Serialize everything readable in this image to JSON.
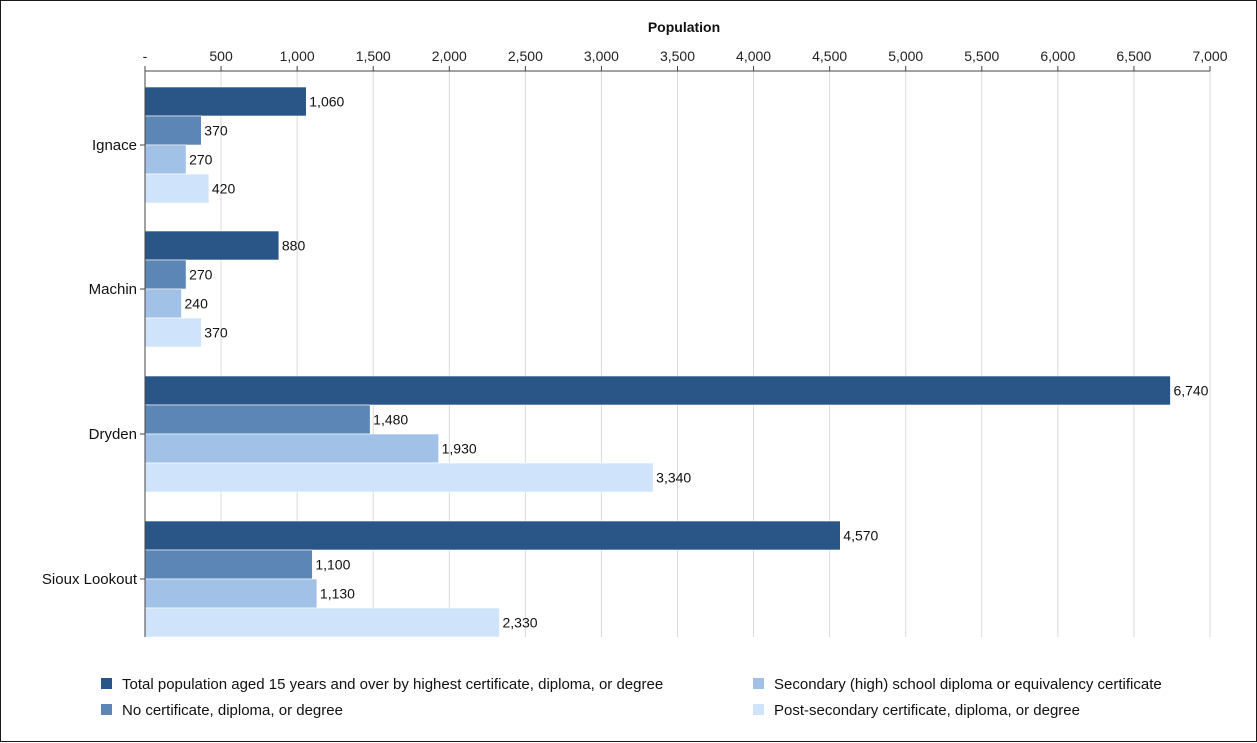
{
  "chart_data": {
    "type": "bar",
    "orientation": "horizontal",
    "title": "",
    "xlabel": "Population",
    "ylabel": "",
    "xlim": [
      0,
      7000
    ],
    "x_ticks": [
      0,
      500,
      1000,
      1500,
      2000,
      2500,
      3000,
      3500,
      4000,
      4500,
      5000,
      5500,
      6000,
      6500,
      7000
    ],
    "x_tick_labels": [
      "-",
      "500",
      "1,000",
      "1,500",
      "2,000",
      "2,500",
      "3,000",
      "3,500",
      "4,000",
      "4,500",
      "5,000",
      "5,500",
      "6,000",
      "6,500",
      "7,000"
    ],
    "x_axis_position": "top",
    "grid": true,
    "legend_position": "bottom",
    "categories": [
      "Ignace",
      "Machin",
      "Dryden",
      "Sioux Lookout"
    ],
    "series": [
      {
        "name": "Total population aged 15 years and over by highest certificate, diploma, or degree",
        "color": "#2a5587",
        "values": [
          1060,
          880,
          6740,
          4570
        ],
        "labels": [
          "1,060",
          "880",
          "6,740",
          "4,570"
        ]
      },
      {
        "name": "No certificate, diploma, or degree",
        "color": "#5b86b5",
        "values": [
          370,
          270,
          1480,
          1100
        ],
        "labels": [
          "370",
          "270",
          "1,480",
          "1,100"
        ]
      },
      {
        "name": "Secondary (high) school diploma or equivalency certificate",
        "color": "#a2c1e6",
        "values": [
          270,
          240,
          1930,
          1130
        ],
        "labels": [
          "270",
          "240",
          "1,930",
          "1,130"
        ]
      },
      {
        "name": "Post-secondary certificate, diploma, or degree",
        "color": "#cfe3fb",
        "values": [
          420,
          370,
          3340,
          2330
        ],
        "labels": [
          "420",
          "370",
          "3,340",
          "2,330"
        ]
      }
    ]
  }
}
